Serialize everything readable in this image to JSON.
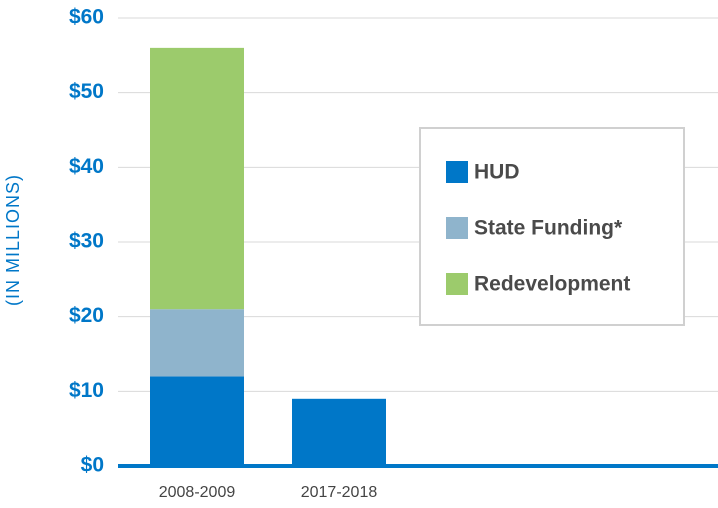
{
  "chart_data": {
    "type": "stacked_bar",
    "y_label": "(IN MILLIONS)",
    "categories": [
      "2008-2009",
      "2017-2018"
    ],
    "series": [
      {
        "name": "HUD",
        "color": "#0077c8",
        "values": [
          12,
          9
        ]
      },
      {
        "name": "State Funding*",
        "color": "#8fb4cc",
        "values": [
          9,
          0
        ]
      },
      {
        "name": "Redevelopment",
        "color": "#9ccb6c",
        "values": [
          35,
          0
        ]
      }
    ],
    "ylim": [
      0,
      60
    ],
    "yticks": [
      {
        "value": 0,
        "label": "$0"
      },
      {
        "value": 10,
        "label": "$10"
      },
      {
        "value": 20,
        "label": "$20"
      },
      {
        "value": 30,
        "label": "$30"
      },
      {
        "value": 40,
        "label": "$40"
      },
      {
        "value": 50,
        "label": "$50"
      },
      {
        "value": 60,
        "label": "$60"
      }
    ],
    "grid": true
  }
}
